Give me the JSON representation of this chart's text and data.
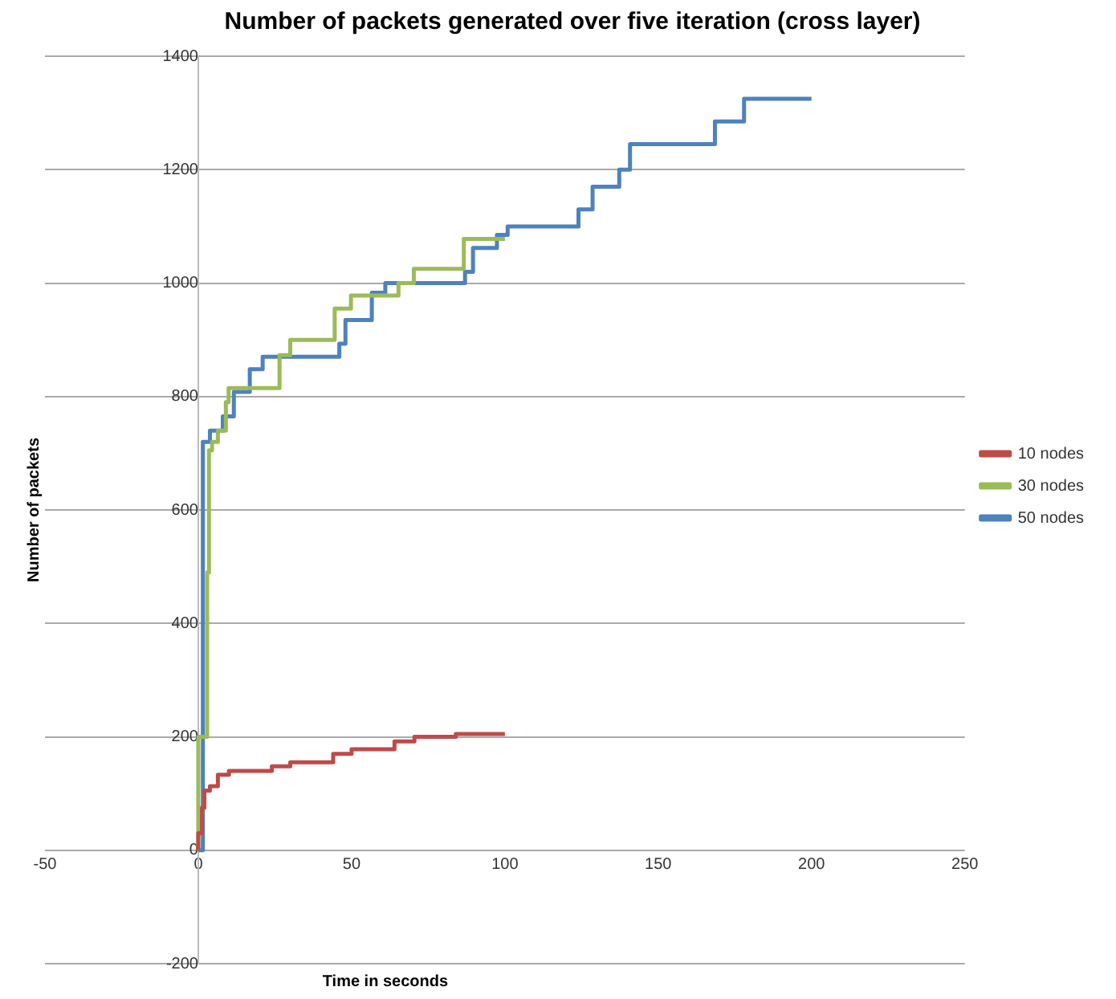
{
  "chart_data": {
    "type": "step",
    "title": "Number of packets generated over five iteration (cross layer)",
    "xlabel": "Time in seconds",
    "ylabel": "Number of packets",
    "xlim": [
      -50,
      250
    ],
    "xticks": [
      -50,
      0,
      50,
      100,
      150,
      200,
      250
    ],
    "ylim": [
      -200,
      1400
    ],
    "yticks": [
      -200,
      0,
      200,
      400,
      600,
      800,
      1000,
      1200,
      1400
    ],
    "grid": "y",
    "legend": "right",
    "marker": "none",
    "line_style": "solid",
    "series": [
      {
        "name": "10 nodes",
        "color": "#be4b48",
        "x": [
          0,
          1.2,
          2,
          3.8,
          6.4,
          10,
          24,
          30,
          44,
          50,
          64,
          70.5,
          84,
          89.6,
          100
        ],
        "values": [
          0,
          30,
          75,
          105,
          113,
          133,
          140,
          148,
          155,
          170,
          178,
          192,
          200,
          205,
          205
        ]
      },
      {
        "name": "30 nodes",
        "color": "#9bbb59",
        "x": [
          0,
          2.9,
          3.5,
          4.5,
          6.4,
          9,
          9.9,
          26.5,
          30,
          44.5,
          49.8,
          65.3,
          70.3,
          86.6,
          89.6,
          100
        ],
        "values": [
          0,
          200,
          490,
          705,
          720,
          740,
          790,
          815,
          873,
          900,
          955,
          978,
          1000,
          1025,
          1078,
          1078
        ]
      },
      {
        "name": "50 nodes",
        "color": "#4f81bd",
        "x": [
          0,
          1.5,
          3.8,
          8,
          11.6,
          16.8,
          21,
          46,
          48,
          56.6,
          61,
          87,
          89.6,
          97.4,
          100.9,
          124,
          128.6,
          137.3,
          140.8,
          168.5,
          178,
          181.5,
          200
        ],
        "values": [
          0,
          0,
          720,
          740,
          765,
          808,
          848,
          870,
          893,
          935,
          983,
          1000,
          1020,
          1062,
          1085,
          1100,
          1130,
          1170,
          1200,
          1245,
          1285,
          1325,
          1325
        ]
      }
    ]
  }
}
